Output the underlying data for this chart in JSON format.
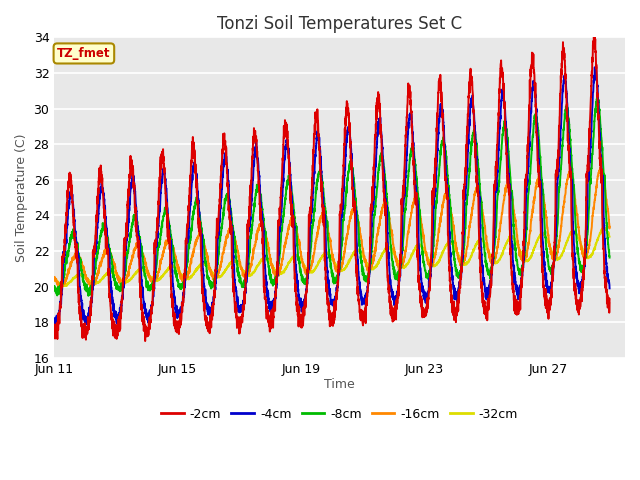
{
  "title": "Tonzi Soil Temperatures Set C",
  "xlabel": "Time",
  "ylabel": "Soil Temperature (C)",
  "ylim": [
    16,
    34
  ],
  "xlim_days": [
    0,
    18.5
  ],
  "x_tick_labels": [
    "Jun 11",
    "Jun 15",
    "Jun 19",
    "Jun 23",
    "Jun 27"
  ],
  "x_tick_positions": [
    0,
    4,
    8,
    12,
    16
  ],
  "legend_labels": [
    "-2cm",
    "-4cm",
    "-8cm",
    "-16cm",
    "-32cm"
  ],
  "legend_colors": [
    "#dd0000",
    "#0000cc",
    "#00bb00",
    "#ff8800",
    "#dddd00"
  ],
  "annotation_text": "TZ_fmet",
  "annotation_bg": "#ffffcc",
  "annotation_border": "#aa8800",
  "plot_bg": "#e8e8e8",
  "grid_color": "#ffffff",
  "line_width": 1.4,
  "n_points": 3600
}
